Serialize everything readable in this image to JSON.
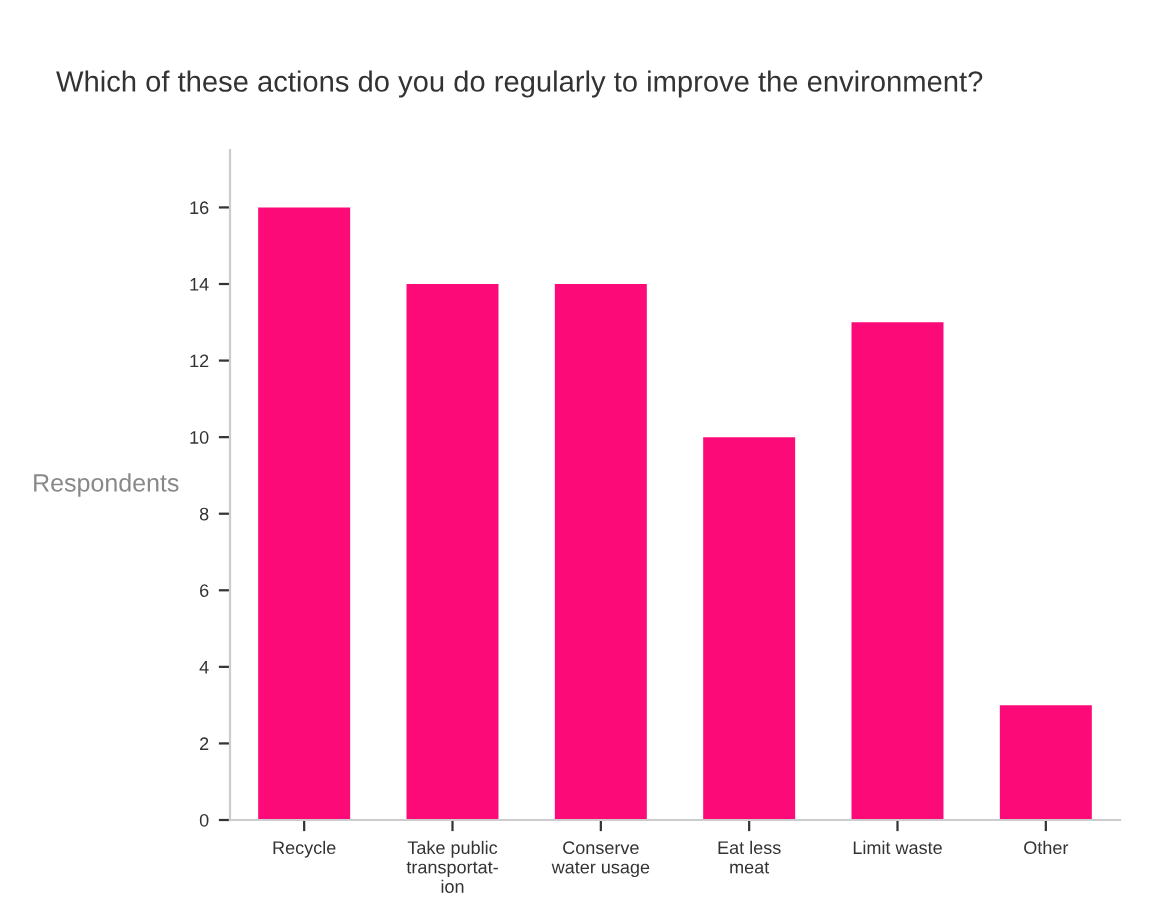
{
  "chart_data": {
    "type": "bar",
    "title": "Which of these actions do you do regularly to improve the environment?",
    "ylabel": "Respondents",
    "categories": [
      "Recycle",
      "Take public\ntransportat-\nion",
      "Conserve\nwater usage",
      "Eat less\nmeat",
      "Limit waste",
      "Other"
    ],
    "values": [
      16,
      14,
      14,
      10,
      13,
      3
    ],
    "color": "#fb0a78",
    "ylim": [
      0,
      17.5
    ],
    "yticks": [
      0,
      2,
      4,
      6,
      8,
      10,
      12,
      14,
      16
    ],
    "grid": false,
    "legend": false
  }
}
